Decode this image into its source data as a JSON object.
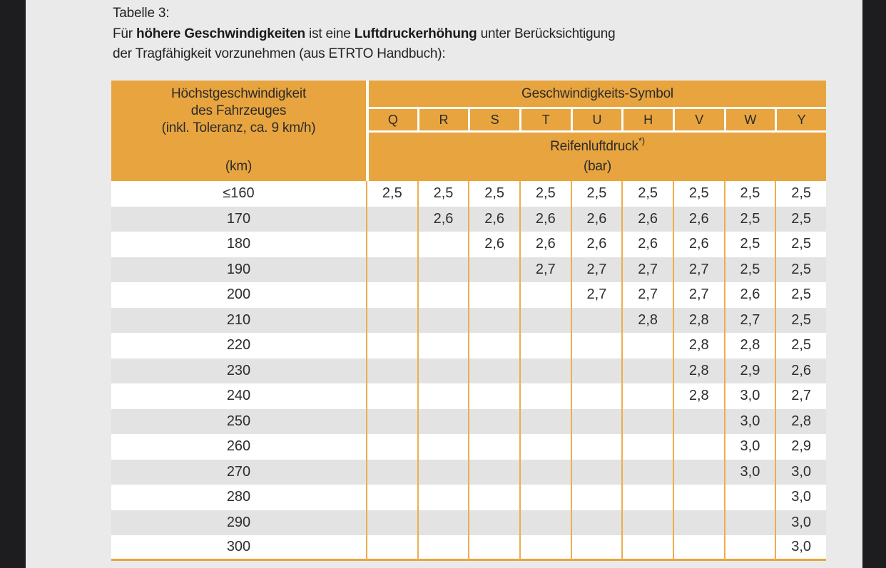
{
  "intro": {
    "table_label": "Tabelle 3:",
    "desc_line1": {
      "seg1": "Für ",
      "seg2_bold": "höhere Geschwindigkeiten",
      "seg3": " ist eine ",
      "seg4_bold": "Luftdruckerhöhung",
      "seg5": " unter Berücksichtigung"
    },
    "desc_line2": "der Tragfähigkeit vorzunehmen (aus ETRTO Handbuch):"
  },
  "table": {
    "header": {
      "col1_lines": [
        "Höchstgeschwindigkeit",
        "des Fahrzeuges",
        "(inkl. Toleranz, ca. 9 km/h)",
        "(km)"
      ],
      "symbol_group_title": "Geschwindigkeits-Symbol",
      "speed_symbols": [
        "Q",
        "R",
        "S",
        "T",
        "U",
        "H",
        "V",
        "W",
        "Y"
      ],
      "pressure_title": "Reifenluftdruck",
      "pressure_note_marker": "*)",
      "pressure_unit": "(bar)"
    },
    "rows": [
      {
        "speed": "≤160",
        "values": [
          "2,5",
          "2,5",
          "2,5",
          "2,5",
          "2,5",
          "2,5",
          "2,5",
          "2,5",
          "2,5"
        ]
      },
      {
        "speed": "170",
        "values": [
          "",
          "2,6",
          "2,6",
          "2,6",
          "2,6",
          "2,6",
          "2,6",
          "2,5",
          "2,5"
        ]
      },
      {
        "speed": "180",
        "values": [
          "",
          "",
          "2,6",
          "2,6",
          "2,6",
          "2,6",
          "2,6",
          "2,5",
          "2,5"
        ]
      },
      {
        "speed": "190",
        "values": [
          "",
          "",
          "",
          "2,7",
          "2,7",
          "2,7",
          "2,7",
          "2,5",
          "2,5"
        ]
      },
      {
        "speed": "200",
        "values": [
          "",
          "",
          "",
          "",
          "2,7",
          "2,7",
          "2,7",
          "2,6",
          "2,5"
        ]
      },
      {
        "speed": "210",
        "values": [
          "",
          "",
          "",
          "",
          "",
          "2,8",
          "2,8",
          "2,7",
          "2,5"
        ]
      },
      {
        "speed": "220",
        "values": [
          "",
          "",
          "",
          "",
          "",
          "",
          "2,8",
          "2,8",
          "2,5"
        ]
      },
      {
        "speed": "230",
        "values": [
          "",
          "",
          "",
          "",
          "",
          "",
          "2,8",
          "2,9",
          "2,6"
        ]
      },
      {
        "speed": "240",
        "values": [
          "",
          "",
          "",
          "",
          "",
          "",
          "2,8",
          "3,0",
          "2,7"
        ]
      },
      {
        "speed": "250",
        "values": [
          "",
          "",
          "",
          "",
          "",
          "",
          "",
          "3,0",
          "2,8"
        ]
      },
      {
        "speed": "260",
        "values": [
          "",
          "",
          "",
          "",
          "",
          "",
          "",
          "3,0",
          "2,9"
        ]
      },
      {
        "speed": "270",
        "values": [
          "",
          "",
          "",
          "",
          "",
          "",
          "",
          "3,0",
          "3,0"
        ]
      },
      {
        "speed": "280",
        "values": [
          "",
          "",
          "",
          "",
          "",
          "",
          "",
          "",
          "3,0"
        ]
      },
      {
        "speed": "290",
        "values": [
          "",
          "",
          "",
          "",
          "",
          "",
          "",
          "",
          "3,0"
        ]
      },
      {
        "speed": "300",
        "values": [
          "",
          "",
          "",
          "",
          "",
          "",
          "",
          "",
          "3,0"
        ]
      }
    ]
  },
  "colors": {
    "header_orange": "#E8A43E",
    "grid_line_orange": "#ECAE4F",
    "header_separator": "#FCFCFC",
    "row_alt_gray": "#E3E3E3",
    "row_white": "#FFFFFF",
    "page_dark": "#1D1D1F",
    "content_gray": "#EAEAEA",
    "text_dark": "#262626"
  }
}
